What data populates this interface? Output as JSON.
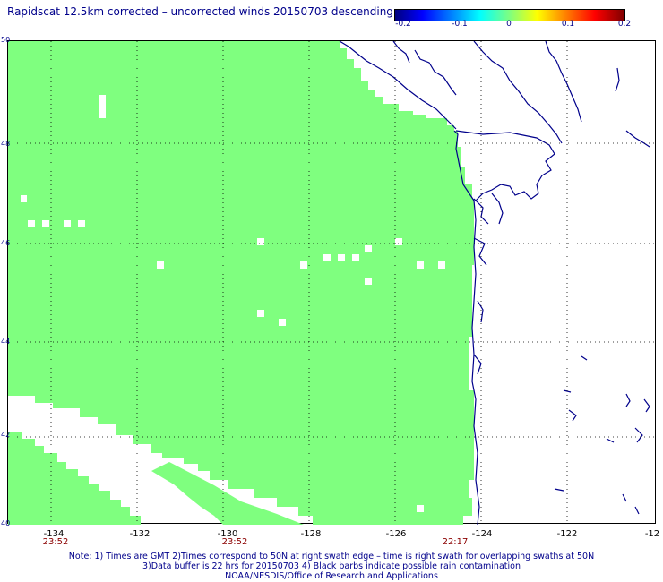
{
  "title": "Rapidscat 12.5km corrected – uncorrected winds 20150703 descending",
  "colorbar": {
    "ticks": [
      "-0.2",
      "-0.1",
      "0",
      "0.1",
      "0.2"
    ],
    "colors": [
      "#00007f",
      "#0000ff",
      "#00ffff",
      "#7fff7f",
      "#ffff00",
      "#ff0000",
      "#7f0000"
    ]
  },
  "map": {
    "lat_range": [
      40,
      50
    ],
    "lon_range": [
      -135,
      -120
    ],
    "lat_ticks": [
      "50",
      "48",
      "46",
      "44",
      "42",
      "40"
    ],
    "lon_ticks": [
      "-134",
      "-132",
      "-130",
      "-128",
      "-126",
      "-124",
      "-122",
      "-12"
    ],
    "swath_color": "#7fff7f",
    "coast_color": "#00008b",
    "grid": true,
    "times": [
      {
        "lon": -134,
        "label": "23:52"
      },
      {
        "lon": -130,
        "label": "23:52"
      },
      {
        "lon": -125,
        "label": "22:17"
      }
    ]
  },
  "notes": [
    "Note: 1) Times are GMT 2)Times correspond to 50N at right swath edge – time is right swath for overlapping swaths at 50N",
    "3)Data buffer is 22 hrs for 20150703 4) Black barbs indicate possible rain contamination",
    "NOAA/NESDIS/Office of Research and Applications"
  ]
}
